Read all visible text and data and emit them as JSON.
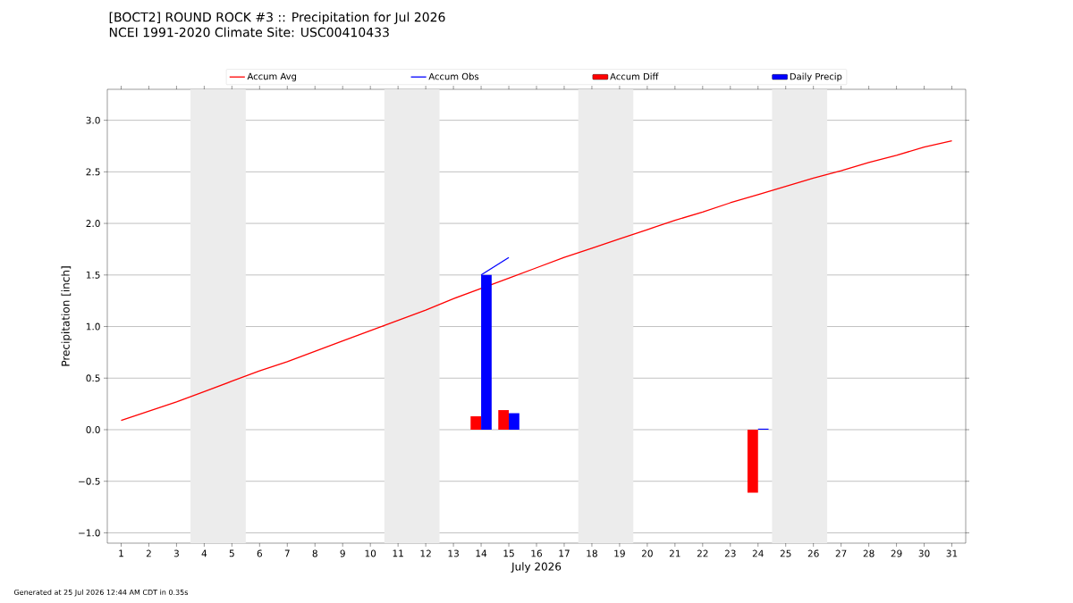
{
  "chart_data": {
    "type": "line",
    "title": "[BOCT2] ROUND ROCK #3 :: Precipitation for Jul 2026",
    "subtitle": "NCEI 1991-2020 Climate Site: USC00410433",
    "xlabel": "July 2026",
    "ylabel": "Precipitation [inch]",
    "annotations": [
      "Generated at 25 Jul 2026 12:44 AM CDT in 0.35s"
    ],
    "xlim": [
      0.5,
      31.5
    ],
    "ylim": [
      -1.1,
      3.3
    ],
    "xticks": [
      1,
      2,
      3,
      4,
      5,
      6,
      7,
      8,
      9,
      10,
      11,
      12,
      13,
      14,
      15,
      16,
      17,
      18,
      19,
      20,
      21,
      22,
      23,
      24,
      25,
      26,
      27,
      28,
      29,
      30,
      31
    ],
    "yticks": [
      {
        "value": -1.0,
        "label": "−1.0"
      },
      {
        "value": -0.5,
        "label": "−0.5"
      },
      {
        "value": 0,
        "label": "0.0"
      },
      {
        "value": 0.5,
        "label": "0.5"
      },
      {
        "value": 1.0,
        "label": "1.0"
      },
      {
        "value": 1.5,
        "label": "1.5"
      },
      {
        "value": 2.0,
        "label": "2.0"
      },
      {
        "value": 2.5,
        "label": "2.5"
      },
      {
        "value": 3.0,
        "label": "3.0"
      }
    ],
    "grid": "y",
    "legend": "top",
    "bands": [
      {
        "axis": "x",
        "from": 3.5,
        "to": 5.5,
        "color": "#ececec"
      },
      {
        "axis": "x",
        "from": 10.5,
        "to": 12.5,
        "color": "#ececec"
      },
      {
        "axis": "x",
        "from": 17.5,
        "to": 19.5,
        "color": "#ececec"
      },
      {
        "axis": "x",
        "from": 24.5,
        "to": 26.5,
        "color": "#ececec"
      }
    ],
    "series": [
      {
        "name": "Accum Avg",
        "color": "#ff0000",
        "x": [
          1,
          2,
          3,
          4,
          5,
          6,
          7,
          8,
          9,
          10,
          11,
          12,
          13,
          14,
          15,
          16,
          17,
          18,
          19,
          20,
          21,
          22,
          23,
          24,
          25,
          26,
          27,
          28,
          29,
          30,
          31
        ],
        "values": [
          0.09,
          0.18,
          0.27,
          0.37,
          0.47,
          0.57,
          0.66,
          0.76,
          0.86,
          0.96,
          1.06,
          1.16,
          1.27,
          1.37,
          1.47,
          1.57,
          1.67,
          1.76,
          1.85,
          1.94,
          2.03,
          2.11,
          2.2,
          2.28,
          2.36,
          2.44,
          2.51,
          2.59,
          2.66,
          2.74,
          2.8
        ]
      },
      {
        "name": "Accum Obs",
        "color": "#0000ff",
        "x": [
          14,
          15
        ],
        "values": [
          1.5,
          1.67
        ]
      },
      {
        "name": "Accum Diff",
        "type": "bar",
        "color": "#ff0000",
        "x": [
          14,
          15,
          24
        ],
        "values": [
          0.13,
          0.19,
          -0.61
        ]
      },
      {
        "name": "Daily Precip",
        "type": "bar",
        "color": "#0000ff",
        "x": [
          14,
          15,
          24
        ],
        "values": [
          1.5,
          0.16,
          0.01
        ]
      }
    ]
  }
}
